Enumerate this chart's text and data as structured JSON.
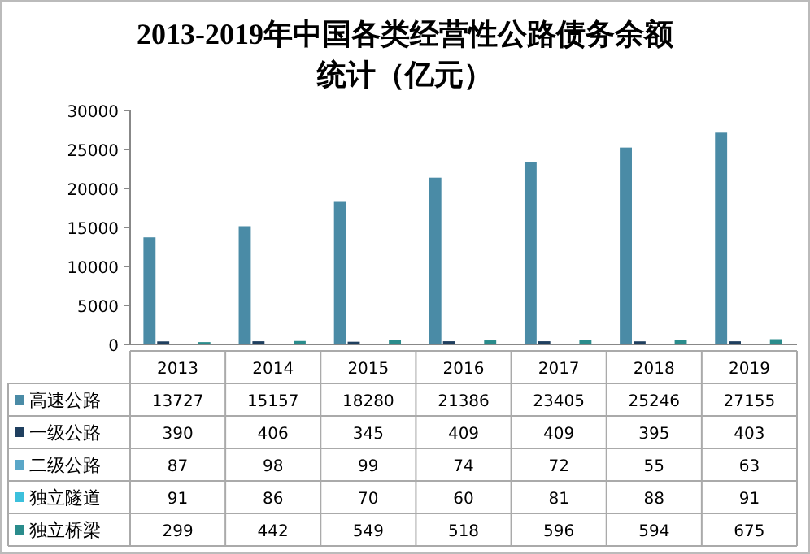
{
  "chart_data": {
    "type": "bar",
    "title": "2013-2019年中国各类经营性公路债务余额统计（亿元）",
    "categories": [
      "2013",
      "2014",
      "2015",
      "2016",
      "2017",
      "2018",
      "2019"
    ],
    "series": [
      {
        "name": "高速公路",
        "color": "#4a8ba6",
        "values": [
          13727,
          15157,
          18280,
          21386,
          23405,
          25246,
          27155
        ]
      },
      {
        "name": "一级公路",
        "color": "#1f3f5f",
        "values": [
          390,
          406,
          345,
          409,
          409,
          395,
          403
        ]
      },
      {
        "name": "二级公路",
        "color": "#5aa7c8",
        "values": [
          87,
          98,
          99,
          74,
          72,
          55,
          63
        ]
      },
      {
        "name": "独立隧道",
        "color": "#3cc0dc",
        "values": [
          91,
          86,
          70,
          60,
          81,
          88,
          91
        ]
      },
      {
        "name": "独立桥梁",
        "color": "#2a8c8c",
        "values": [
          299,
          442,
          549,
          518,
          596,
          594,
          675
        ]
      }
    ],
    "ylim": [
      0,
      30000
    ],
    "yticks": [
      0,
      5000,
      10000,
      15000,
      20000,
      25000,
      30000
    ],
    "data_labels": true,
    "legend": "bottom"
  }
}
